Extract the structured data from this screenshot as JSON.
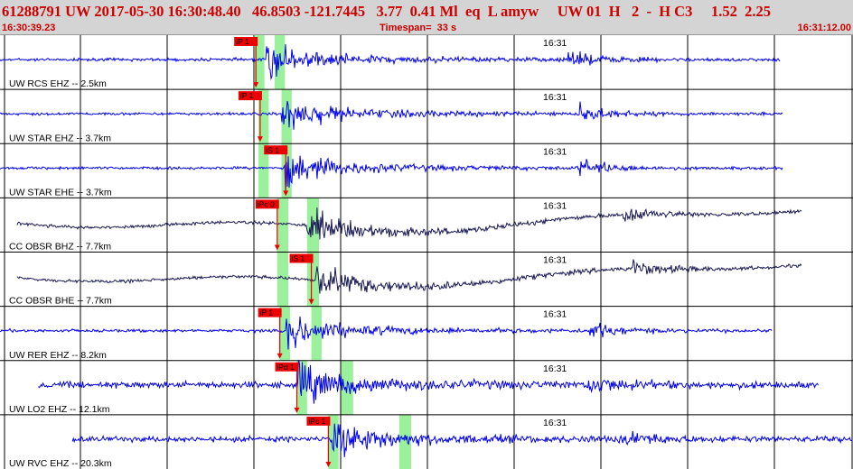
{
  "header": {
    "title": "61288791 UW 2017-05-30 16:30:48.40   46.8503 -121.7445   3.77  0.41 Ml  eq  L amyw     UW 01  H   2  -  H C3     1.52  2.25",
    "start_time": "16:30:39.23",
    "timespan": "Timespan=  33 s",
    "end_time": "16:31:12.00"
  },
  "colors": {
    "header_bg": "#d4d4d4",
    "header_text": "#cc0000",
    "trace_blue": "#0000ee",
    "trace_dark": "#1a1a55",
    "pick_box": "#ee0000",
    "window_green": "#90f090",
    "grid": "#000000"
  },
  "minute_mark_label": "16:31",
  "traces": [
    {
      "label": "UW RCS EHZ -- 2.5km",
      "color": "blue",
      "start": 0.0,
      "end": 0.915,
      "amp": 0.11,
      "arrival": 0.312,
      "secondary": 0.665,
      "picks": [
        {
          "text": "iP 1",
          "t": 0.3
        }
      ],
      "windows": [
        [
          0.298,
          0.31
        ],
        [
          0.322,
          0.334
        ]
      ]
    },
    {
      "label": "UW STAR EHZ -- 3.7km",
      "color": "blue",
      "start": 0.0,
      "end": 0.918,
      "amp": 0.1,
      "arrival": 0.33,
      "secondary": 0.68,
      "picks": [
        {
          "text": "iP 1",
          "t": 0.305
        }
      ],
      "windows": [
        [
          0.303,
          0.315
        ],
        [
          0.33,
          0.342
        ]
      ]
    },
    {
      "label": "UW STAR EHE -- 3.7km",
      "color": "blue",
      "start": 0.0,
      "end": 0.918,
      "amp": 0.1,
      "arrival": 0.333,
      "secondary": 0.68,
      "picks": [
        {
          "text": "iS 1",
          "t": 0.335
        }
      ],
      "windows": [
        [
          0.303,
          0.315
        ],
        [
          0.33,
          0.342
        ]
      ]
    },
    {
      "label": "CC OBSR BHZ -- 7.7km",
      "color": "dark",
      "start": 0.02,
      "end": 0.94,
      "amp": 0.12,
      "arrival": 0.36,
      "secondary": 0.73,
      "picks": [
        {
          "text": "iPc 0",
          "t": 0.325
        }
      ],
      "windows": [
        [
          0.325,
          0.338
        ],
        [
          0.36,
          0.374
        ]
      ]
    },
    {
      "label": "CC OBSR BHE -- 7.7km",
      "color": "dark",
      "start": 0.02,
      "end": 0.94,
      "amp": 0.12,
      "arrival": 0.37,
      "secondary": 0.74,
      "picks": [
        {
          "text": "iS 1",
          "t": 0.365
        }
      ],
      "windows": [
        [
          0.325,
          0.338
        ],
        [
          0.36,
          0.374
        ]
      ]
    },
    {
      "label": "UW RER EHZ -- 8.2km",
      "color": "blue",
      "start": 0.0,
      "end": 0.905,
      "amp": 0.11,
      "arrival": 0.335,
      "secondary": 0.69,
      "picks": [
        {
          "text": "iP 1",
          "t": 0.328
        }
      ],
      "windows": [
        [
          0.328,
          0.34
        ],
        [
          0.365,
          0.377
        ]
      ]
    },
    {
      "label": "UW LO2 EHZ -- 12.1km",
      "color": "blue",
      "start": 0.045,
      "end": 0.96,
      "amp": 0.24,
      "arrival": 0.35,
      "secondary": 0.69,
      "picks": [
        {
          "text": "iPd 1",
          "t": 0.348
        }
      ],
      "windows": [
        [
          0.348,
          0.36
        ],
        [
          0.4,
          0.414
        ]
      ]
    },
    {
      "label": "UW RVC EHZ -- 20.3km",
      "color": "blue",
      "start": 0.085,
      "end": 1.0,
      "amp": 0.2,
      "arrival": 0.39,
      "secondary": 0.73,
      "picks": [
        {
          "text": "iPc 1",
          "t": 0.385
        }
      ],
      "windows": [
        [
          0.385,
          0.397
        ],
        [
          0.468,
          0.482
        ]
      ]
    }
  ]
}
